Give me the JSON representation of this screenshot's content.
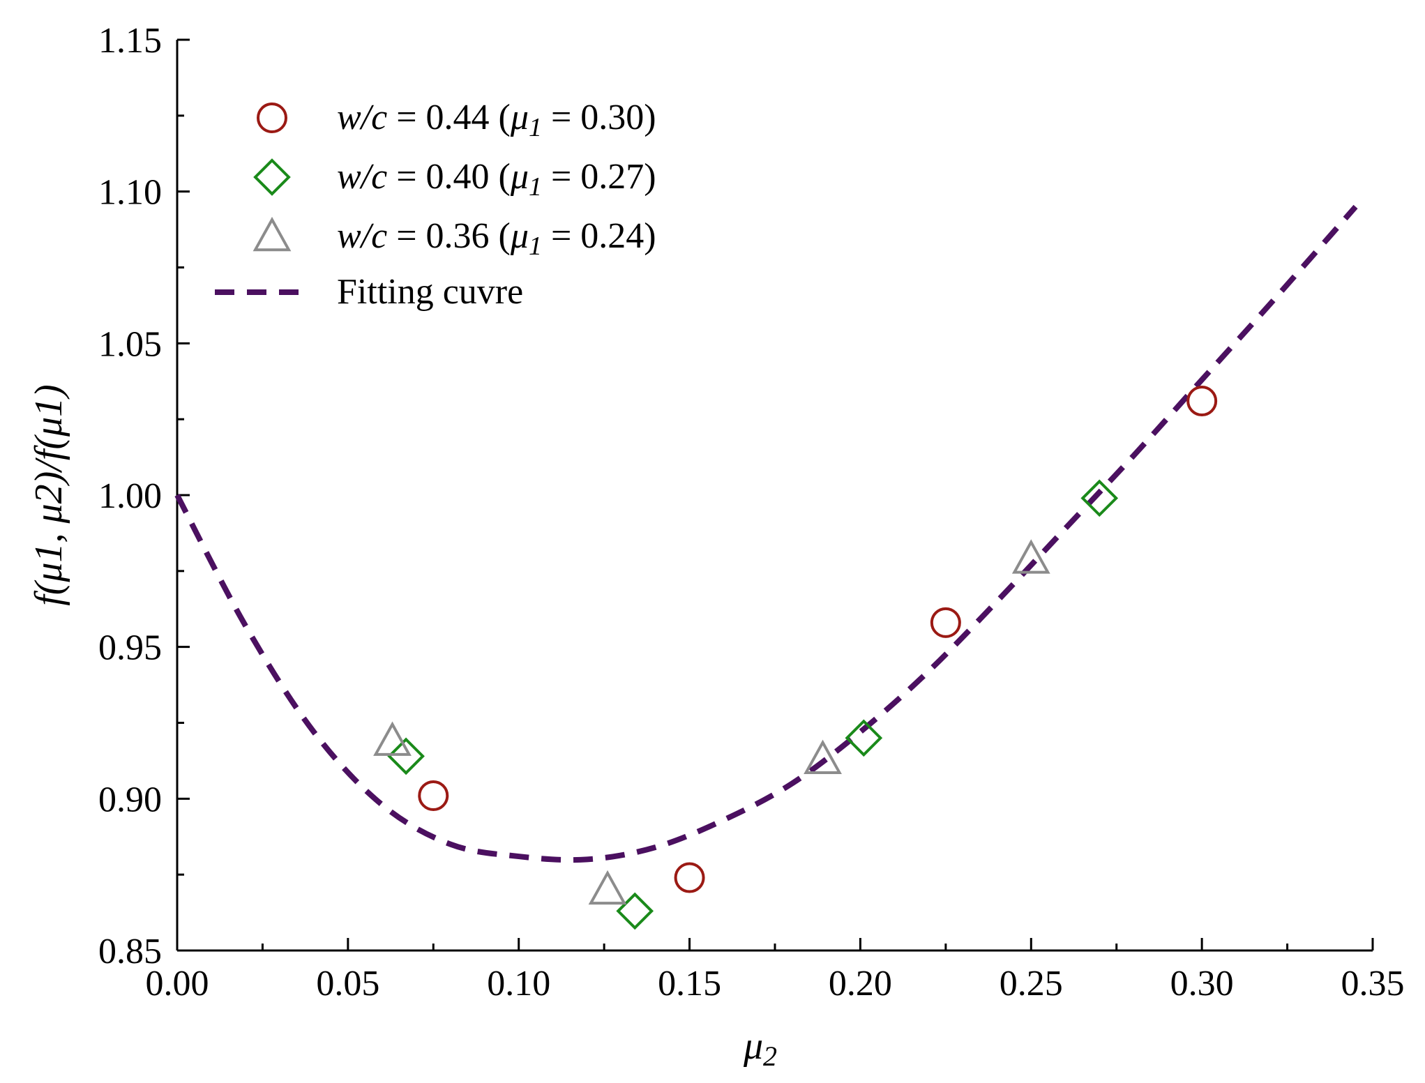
{
  "chart_data": {
    "type": "scatter",
    "title": "",
    "xlabel": "μ2",
    "ylabel": "f(μ1, μ2)/f(μ1)",
    "xlim": [
      0.0,
      0.35
    ],
    "ylim": [
      0.85,
      1.15
    ],
    "xticks": [
      "0.00",
      "0.05",
      "0.10",
      "0.15",
      "0.20",
      "0.25",
      "0.30",
      "0.35"
    ],
    "yticks": [
      "0.85",
      "0.90",
      "0.95",
      "1.00",
      "1.05",
      "1.10",
      "1.15"
    ],
    "legend_position": "top-left",
    "series": [
      {
        "name": "w/c = 0.44 (μ1 = 0.30)",
        "wc": "w/c",
        "wc_value": "0.44",
        "mu_value": "0.30",
        "marker": "circle",
        "color": "#9b1a14",
        "x": [
          0.075,
          0.15,
          0.225,
          0.3
        ],
        "y": [
          0.901,
          0.874,
          0.958,
          1.031
        ]
      },
      {
        "name": "w/c = 0.40 (μ1 = 0.27)",
        "wc": "w/c",
        "wc_value": "0.40",
        "mu_value": "0.27",
        "marker": "diamond",
        "color": "#1a8a1a",
        "x": [
          0.067,
          0.134,
          0.201,
          0.27
        ],
        "y": [
          0.914,
          0.863,
          0.92,
          0.999
        ]
      },
      {
        "name": "w/c = 0.36 (μ1 = 0.24)",
        "wc": "w/c",
        "wc_value": "0.36",
        "mu_value": "0.24",
        "marker": "triangle",
        "color": "#8c8c8c",
        "x": [
          0.063,
          0.126,
          0.189,
          0.25
        ],
        "y": [
          0.919,
          0.87,
          0.913,
          0.979
        ]
      },
      {
        "name": "Fitting cuvre",
        "marker": "dashed-line",
        "color": "#4b1060",
        "x": [
          0.0,
          0.02,
          0.04,
          0.06,
          0.08,
          0.1,
          0.12,
          0.14,
          0.16,
          0.18,
          0.2,
          0.22,
          0.24,
          0.26,
          0.28,
          0.3,
          0.32,
          0.345
        ],
        "y": [
          1.0,
          0.957,
          0.922,
          0.898,
          0.885,
          0.881,
          0.88,
          0.884,
          0.893,
          0.905,
          0.922,
          0.942,
          0.965,
          0.989,
          1.013,
          1.038,
          1.063,
          1.095
        ]
      }
    ]
  }
}
